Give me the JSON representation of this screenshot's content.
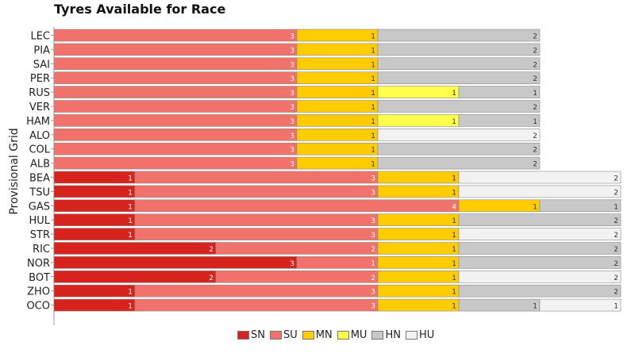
{
  "chart_data": {
    "type": "bar",
    "orientation": "horizontal",
    "stacked": true,
    "title": "Tyres Available for Race",
    "ylabel": "Provisional Grid",
    "xlabel": "",
    "categories": [
      "LEC",
      "PIA",
      "SAI",
      "PER",
      "RUS",
      "VER",
      "HAM",
      "ALO",
      "COL",
      "ALB",
      "BEA",
      "TSU",
      "GAS",
      "HUL",
      "STR",
      "RIC",
      "NOR",
      "BOT",
      "ZHO",
      "OCO"
    ],
    "series": [
      {
        "name": "SN",
        "color": "#d7231e",
        "values": [
          0,
          0,
          0,
          0,
          0,
          0,
          0,
          0,
          0,
          0,
          1,
          1,
          1,
          1,
          1,
          2,
          3,
          2,
          1,
          1
        ]
      },
      {
        "name": "SU",
        "color": "#f0726a",
        "values": [
          3,
          3,
          3,
          3,
          3,
          3,
          3,
          3,
          3,
          3,
          3,
          3,
          4,
          3,
          3,
          2,
          1,
          2,
          3,
          3
        ]
      },
      {
        "name": "MN",
        "color": "#ffcc00",
        "values": [
          1,
          1,
          1,
          1,
          1,
          1,
          1,
          1,
          1,
          1,
          1,
          1,
          1,
          1,
          1,
          1,
          1,
          1,
          1,
          1
        ]
      },
      {
        "name": "MU",
        "color": "#ffff4c",
        "values": [
          0,
          0,
          0,
          0,
          1,
          0,
          1,
          0,
          0,
          0,
          0,
          0,
          0,
          0,
          0,
          0,
          0,
          0,
          0,
          0
        ]
      },
      {
        "name": "HN",
        "color": "#c8c8c8",
        "values": [
          2,
          2,
          2,
          2,
          1,
          2,
          1,
          0,
          2,
          2,
          0,
          0,
          1,
          2,
          0,
          2,
          2,
          0,
          2,
          1
        ]
      },
      {
        "name": "HU",
        "color": "#f2f2f2",
        "values": [
          0,
          0,
          0,
          0,
          0,
          0,
          0,
          2,
          0,
          0,
          2,
          2,
          0,
          0,
          2,
          0,
          0,
          2,
          0,
          1
        ]
      }
    ],
    "xlim": [
      0,
      7.2
    ],
    "legend_position": "bottom-center",
    "grid": false
  }
}
